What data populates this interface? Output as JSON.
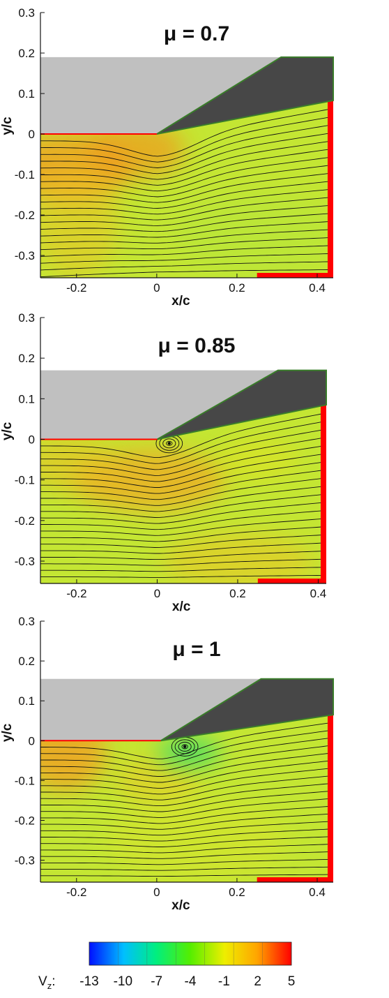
{
  "chart_data": [
    {
      "type": "heatmap",
      "title": "μ = 0.7",
      "xlabel": "x/c",
      "ylabel": "y/c",
      "xlim": [
        -0.29,
        0.44
      ],
      "ylim": [
        -0.355,
        0.3
      ],
      "x_ticks": [
        "-0.2",
        "0",
        "0.2",
        "0.4"
      ],
      "y_ticks": [
        "0.3",
        "0.2",
        "0.1",
        "0",
        "-0.1",
        "-0.2",
        "-0.3"
      ],
      "grid": false,
      "geometry": {
        "hull_top": 0.19,
        "bevel_start_x": 0.0,
        "bevel_end_x": 0.31,
        "flap_bottom_left": [
          0.0,
          0.0
        ],
        "flap_bottom_right": [
          0.44,
          0.083
        ]
      },
      "field_description": "Vz mostly -2 to 1; warm band up to about 3 along lower-left and near leading edge",
      "vortex": null
    },
    {
      "type": "heatmap",
      "title": "μ = 0.85",
      "xlabel": "x/c",
      "ylabel": "y/c",
      "xlim": [
        -0.29,
        0.42
      ],
      "ylim": [
        -0.355,
        0.3
      ],
      "x_ticks": [
        "-0.2",
        "0",
        "0.2",
        "0.4"
      ],
      "y_ticks": [
        "0.3",
        "0.2",
        "0.1",
        "0",
        "-0.1",
        "-0.2",
        "-0.3"
      ],
      "grid": false,
      "geometry": {
        "hull_top": 0.17,
        "bevel_start_x": 0.0,
        "bevel_end_x": 0.3,
        "flap_bottom_left": [
          0.0,
          0.0
        ],
        "flap_bottom_right": [
          0.42,
          0.085
        ]
      },
      "field_description": "Vz about -1 to 2; small recirculation bubble near the leading edge",
      "vortex": [
        0.03,
        -0.01
      ]
    },
    {
      "type": "heatmap",
      "title": "μ = 1",
      "xlabel": "x/c",
      "ylabel": "y/c",
      "xlim": [
        -0.29,
        0.44
      ],
      "ylim": [
        -0.355,
        0.3
      ],
      "x_ticks": [
        "-0.2",
        "0",
        "0.2",
        "0.4"
      ],
      "y_ticks": [
        "0.3",
        "0.2",
        "0.1",
        "0",
        "-0.1",
        "-0.2",
        "-0.3"
      ],
      "grid": false,
      "geometry": {
        "hull_top": 0.155,
        "bevel_start_x": 0.01,
        "bevel_end_x": 0.26,
        "flap_bottom_left": [
          0.01,
          0.0
        ],
        "flap_bottom_right": [
          0.44,
          0.065
        ]
      },
      "field_description": "Vz about -2 to 2; green region (about -4) beneath the vortex near the leading edge",
      "vortex": [
        0.07,
        -0.015
      ]
    }
  ],
  "colorbar": {
    "label_main": "V",
    "label_sub": "z",
    "label_suffix": ":",
    "ticks": [
      "-13",
      "-10",
      "-7",
      "-4",
      "-1",
      "2",
      "5"
    ],
    "range": [
      -13,
      5
    ],
    "colors": [
      "#0011ff",
      "#00bbff",
      "#00ee77",
      "#66ee00",
      "#eeee00",
      "#ffaa00",
      "#ff0000"
    ]
  },
  "colors": {
    "fixed_body": "#c0c0c0",
    "moving_flap": "#474747",
    "flap_outline": "#3a7d2a",
    "mask": "#ff0000",
    "streamline": "#111111"
  }
}
